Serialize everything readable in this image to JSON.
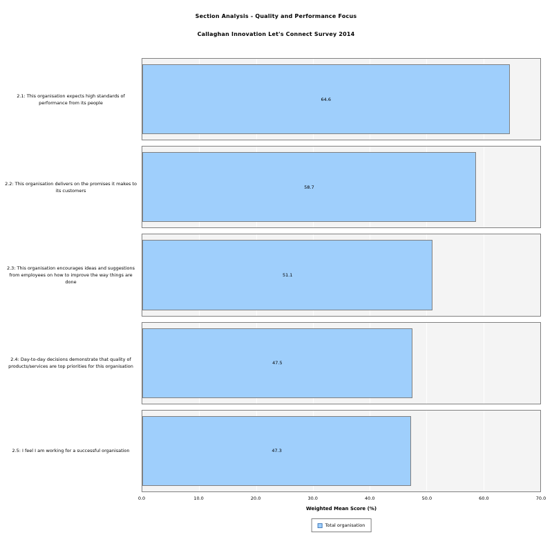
{
  "title": "Section Analysis - Quality and Performance Focus",
  "subtitle": "Callaghan Innovation Let's Connect Survey 2014",
  "colors": {
    "bar_fill": "#9FCFFC",
    "bar_border": "#7F7F7F",
    "panel_bg": "#F4F4F4",
    "panel_border": "#808080",
    "grid_line": "#FFFFFF",
    "swatch_border": "#4A7EBB"
  },
  "chart_data": {
    "type": "bar",
    "orientation": "horizontal",
    "title": "Section Analysis - Quality and Performance Focus",
    "subtitle": "Callaghan Innovation Let's Connect Survey 2014",
    "categories": [
      "2.1: This organisation expects high standards of performance from its people",
      "2.2: This organisation delivers on the promises it makes to its customers",
      "2.3: This organisation encourages ideas and suggestions from employees on how to improve the way things are done",
      "2.4: Day-to-day decisions demonstrate that quality of products/services are top priorities for this organisation",
      "2.5: I feel I am working for a successful organisation"
    ],
    "series": [
      {
        "name": "Total organisation",
        "values": [
          64.6,
          58.7,
          51.1,
          47.5,
          47.3
        ]
      }
    ],
    "xlabel": "Weighted Mean Score (%)",
    "ylabel": "",
    "xlim": [
      0,
      70
    ],
    "xticks": [
      "0.0",
      "10.0",
      "20.0",
      "30.0",
      "40.0",
      "50.0",
      "60.0",
      "70.0"
    ],
    "grid": true,
    "legend_position": "bottom"
  }
}
